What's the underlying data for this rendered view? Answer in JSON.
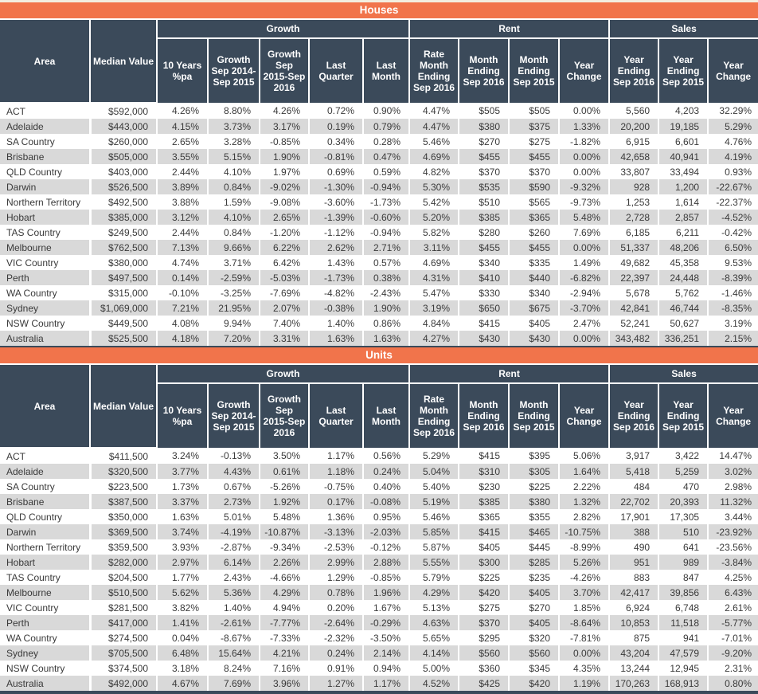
{
  "colors": {
    "accent_orange": "#F1744B",
    "header_navy": "#3B4A5A",
    "stripe_gray": "#D9D9D9",
    "page_top_border": "#F3EEE0"
  },
  "header": {
    "groups": [
      {
        "label": "Growth"
      },
      {
        "label": "Rent"
      },
      {
        "label": "Sales"
      }
    ]
  },
  "chart_data": [
    {
      "type": "table",
      "title": "Houses",
      "column_groups": [
        {
          "label": "Growth",
          "span": 5
        },
        {
          "label": "Rent",
          "span": 4
        },
        {
          "label": "Sales",
          "span": 3
        }
      ],
      "columns": [
        "Area",
        "Median Value",
        "10 Years %pa",
        "Growth Sep 2014-Sep 2015",
        "Growth Sep 2015-Sep 2016",
        "Last Quarter",
        "Last Month",
        "Rate Month Ending Sep 2016",
        "Month Ending Sep 2016",
        "Month Ending Sep 2015",
        "Year Change",
        "Year Ending Sep 2016",
        "Year Ending Sep 2015",
        "Year Change"
      ],
      "rows": [
        [
          "ACT",
          "$592,000",
          "4.26%",
          "8.80%",
          "4.26%",
          "0.72%",
          "0.90%",
          "4.47%",
          "$505",
          "$505",
          "0.00%",
          "5,560",
          "4,203",
          "32.29%"
        ],
        [
          "Adelaide",
          "$443,000",
          "4.15%",
          "3.73%",
          "3.17%",
          "0.19%",
          "0.79%",
          "4.47%",
          "$380",
          "$375",
          "1.33%",
          "20,200",
          "19,185",
          "5.29%"
        ],
        [
          "SA Country",
          "$260,000",
          "2.65%",
          "3.28%",
          "-0.85%",
          "0.34%",
          "0.28%",
          "5.46%",
          "$270",
          "$275",
          "-1.82%",
          "6,915",
          "6,601",
          "4.76%"
        ],
        [
          "Brisbane",
          "$505,000",
          "3.55%",
          "5.15%",
          "1.90%",
          "-0.81%",
          "0.47%",
          "4.69%",
          "$455",
          "$455",
          "0.00%",
          "42,658",
          "40,941",
          "4.19%"
        ],
        [
          "QLD Country",
          "$403,000",
          "2.44%",
          "4.10%",
          "1.97%",
          "0.69%",
          "0.59%",
          "4.82%",
          "$370",
          "$370",
          "0.00%",
          "33,807",
          "33,494",
          "0.93%"
        ],
        [
          "Darwin",
          "$526,500",
          "3.89%",
          "0.84%",
          "-9.02%",
          "-1.30%",
          "-0.94%",
          "5.30%",
          "$535",
          "$590",
          "-9.32%",
          "928",
          "1,200",
          "-22.67%"
        ],
        [
          "Northern Territory",
          "$492,500",
          "3.88%",
          "1.59%",
          "-9.08%",
          "-3.60%",
          "-1.73%",
          "5.42%",
          "$510",
          "$565",
          "-9.73%",
          "1,253",
          "1,614",
          "-22.37%"
        ],
        [
          "Hobart",
          "$385,000",
          "3.12%",
          "4.10%",
          "2.65%",
          "-1.39%",
          "-0.60%",
          "5.20%",
          "$385",
          "$365",
          "5.48%",
          "2,728",
          "2,857",
          "-4.52%"
        ],
        [
          "TAS Country",
          "$249,500",
          "2.44%",
          "0.84%",
          "-1.20%",
          "-1.12%",
          "-0.94%",
          "5.82%",
          "$280",
          "$260",
          "7.69%",
          "6,185",
          "6,211",
          "-0.42%"
        ],
        [
          "Melbourne",
          "$762,500",
          "7.13%",
          "9.66%",
          "6.22%",
          "2.62%",
          "2.71%",
          "3.11%",
          "$455",
          "$455",
          "0.00%",
          "51,337",
          "48,206",
          "6.50%"
        ],
        [
          "VIC Country",
          "$380,000",
          "4.74%",
          "3.71%",
          "6.42%",
          "1.43%",
          "0.57%",
          "4.69%",
          "$340",
          "$335",
          "1.49%",
          "49,682",
          "45,358",
          "9.53%"
        ],
        [
          "Perth",
          "$497,500",
          "0.14%",
          "-2.59%",
          "-5.03%",
          "-1.73%",
          "0.38%",
          "4.31%",
          "$410",
          "$440",
          "-6.82%",
          "22,397",
          "24,448",
          "-8.39%"
        ],
        [
          "WA Country",
          "$315,000",
          "-0.10%",
          "-3.25%",
          "-7.69%",
          "-4.82%",
          "-2.43%",
          "5.47%",
          "$330",
          "$340",
          "-2.94%",
          "5,678",
          "5,762",
          "-1.46%"
        ],
        [
          "Sydney",
          "$1,069,000",
          "7.21%",
          "21.95%",
          "2.07%",
          "-0.38%",
          "1.90%",
          "3.19%",
          "$650",
          "$675",
          "-3.70%",
          "42,841",
          "46,744",
          "-8.35%"
        ],
        [
          "NSW Country",
          "$449,500",
          "4.08%",
          "9.94%",
          "7.40%",
          "1.40%",
          "0.86%",
          "4.84%",
          "$415",
          "$405",
          "2.47%",
          "52,241",
          "50,627",
          "3.19%"
        ],
        [
          "Australia",
          "$525,500",
          "4.18%",
          "7.20%",
          "3.31%",
          "1.63%",
          "1.63%",
          "4.27%",
          "$430",
          "$430",
          "0.00%",
          "343,482",
          "336,251",
          "2.15%"
        ]
      ]
    },
    {
      "type": "table",
      "title": "Units",
      "column_groups": [
        {
          "label": "Growth",
          "span": 5
        },
        {
          "label": "Rent",
          "span": 4
        },
        {
          "label": "Sales",
          "span": 3
        }
      ],
      "columns": [
        "Area",
        "Median Value",
        "10 Years %pa",
        "Growth Sep 2014-Sep 2015",
        "Growth Sep 2015-Sep 2016",
        "Last Quarter",
        "Last Month",
        "Rate Month Ending Sep 2016",
        "Month Ending Sep 2016",
        "Month Ending Sep 2015",
        "Year Change",
        "Year Ending Sep 2016",
        "Year Ending Sep 2015",
        "Year Change"
      ],
      "rows": [
        [
          "ACT",
          "$411,500",
          "3.24%",
          "-0.13%",
          "3.50%",
          "1.17%",
          "0.56%",
          "5.29%",
          "$415",
          "$395",
          "5.06%",
          "3,917",
          "3,422",
          "14.47%"
        ],
        [
          "Adelaide",
          "$320,500",
          "3.77%",
          "4.43%",
          "0.61%",
          "1.18%",
          "0.24%",
          "5.04%",
          "$310",
          "$305",
          "1.64%",
          "5,418",
          "5,259",
          "3.02%"
        ],
        [
          "SA Country",
          "$223,500",
          "1.73%",
          "0.67%",
          "-5.26%",
          "-0.75%",
          "0.40%",
          "5.40%",
          "$230",
          "$225",
          "2.22%",
          "484",
          "470",
          "2.98%"
        ],
        [
          "Brisbane",
          "$387,500",
          "3.37%",
          "2.73%",
          "1.92%",
          "0.17%",
          "-0.08%",
          "5.19%",
          "$385",
          "$380",
          "1.32%",
          "22,702",
          "20,393",
          "11.32%"
        ],
        [
          "QLD Country",
          "$350,000",
          "1.63%",
          "5.01%",
          "5.48%",
          "1.36%",
          "0.95%",
          "5.46%",
          "$365",
          "$355",
          "2.82%",
          "17,901",
          "17,305",
          "3.44%"
        ],
        [
          "Darwin",
          "$369,500",
          "3.74%",
          "-4.19%",
          "-10.87%",
          "-3.13%",
          "-2.03%",
          "5.85%",
          "$415",
          "$465",
          "-10.75%",
          "388",
          "510",
          "-23.92%"
        ],
        [
          "Northern Territory",
          "$359,500",
          "3.93%",
          "-2.87%",
          "-9.34%",
          "-2.53%",
          "-0.12%",
          "5.87%",
          "$405",
          "$445",
          "-8.99%",
          "490",
          "641",
          "-23.56%"
        ],
        [
          "Hobart",
          "$282,000",
          "2.97%",
          "6.14%",
          "2.26%",
          "2.99%",
          "2.88%",
          "5.55%",
          "$300",
          "$285",
          "5.26%",
          "951",
          "989",
          "-3.84%"
        ],
        [
          "TAS Country",
          "$204,500",
          "1.77%",
          "2.43%",
          "-4.66%",
          "1.29%",
          "-0.85%",
          "5.79%",
          "$225",
          "$235",
          "-4.26%",
          "883",
          "847",
          "4.25%"
        ],
        [
          "Melbourne",
          "$510,500",
          "5.62%",
          "5.36%",
          "4.29%",
          "0.78%",
          "1.96%",
          "4.29%",
          "$420",
          "$405",
          "3.70%",
          "42,417",
          "39,856",
          "6.43%"
        ],
        [
          "VIC Country",
          "$281,500",
          "3.82%",
          "1.40%",
          "4.94%",
          "0.20%",
          "1.67%",
          "5.13%",
          "$275",
          "$270",
          "1.85%",
          "6,924",
          "6,748",
          "2.61%"
        ],
        [
          "Perth",
          "$417,000",
          "1.41%",
          "-2.61%",
          "-7.77%",
          "-2.64%",
          "-0.29%",
          "4.63%",
          "$370",
          "$405",
          "-8.64%",
          "10,853",
          "11,518",
          "-5.77%"
        ],
        [
          "WA Country",
          "$274,500",
          "0.04%",
          "-8.67%",
          "-7.33%",
          "-2.32%",
          "-3.50%",
          "5.65%",
          "$295",
          "$320",
          "-7.81%",
          "875",
          "941",
          "-7.01%"
        ],
        [
          "Sydney",
          "$705,500",
          "6.48%",
          "15.64%",
          "4.21%",
          "0.24%",
          "2.14%",
          "4.14%",
          "$560",
          "$560",
          "0.00%",
          "43,204",
          "47,579",
          "-9.20%"
        ],
        [
          "NSW Country",
          "$374,500",
          "3.18%",
          "8.24%",
          "7.16%",
          "0.91%",
          "0.94%",
          "5.00%",
          "$360",
          "$345",
          "4.35%",
          "13,244",
          "12,945",
          "2.31%"
        ],
        [
          "Australia",
          "$492,000",
          "4.67%",
          "7.69%",
          "3.96%",
          "1.27%",
          "1.17%",
          "4.52%",
          "$425",
          "$420",
          "1.19%",
          "170,263",
          "168,913",
          "0.80%"
        ]
      ]
    }
  ]
}
